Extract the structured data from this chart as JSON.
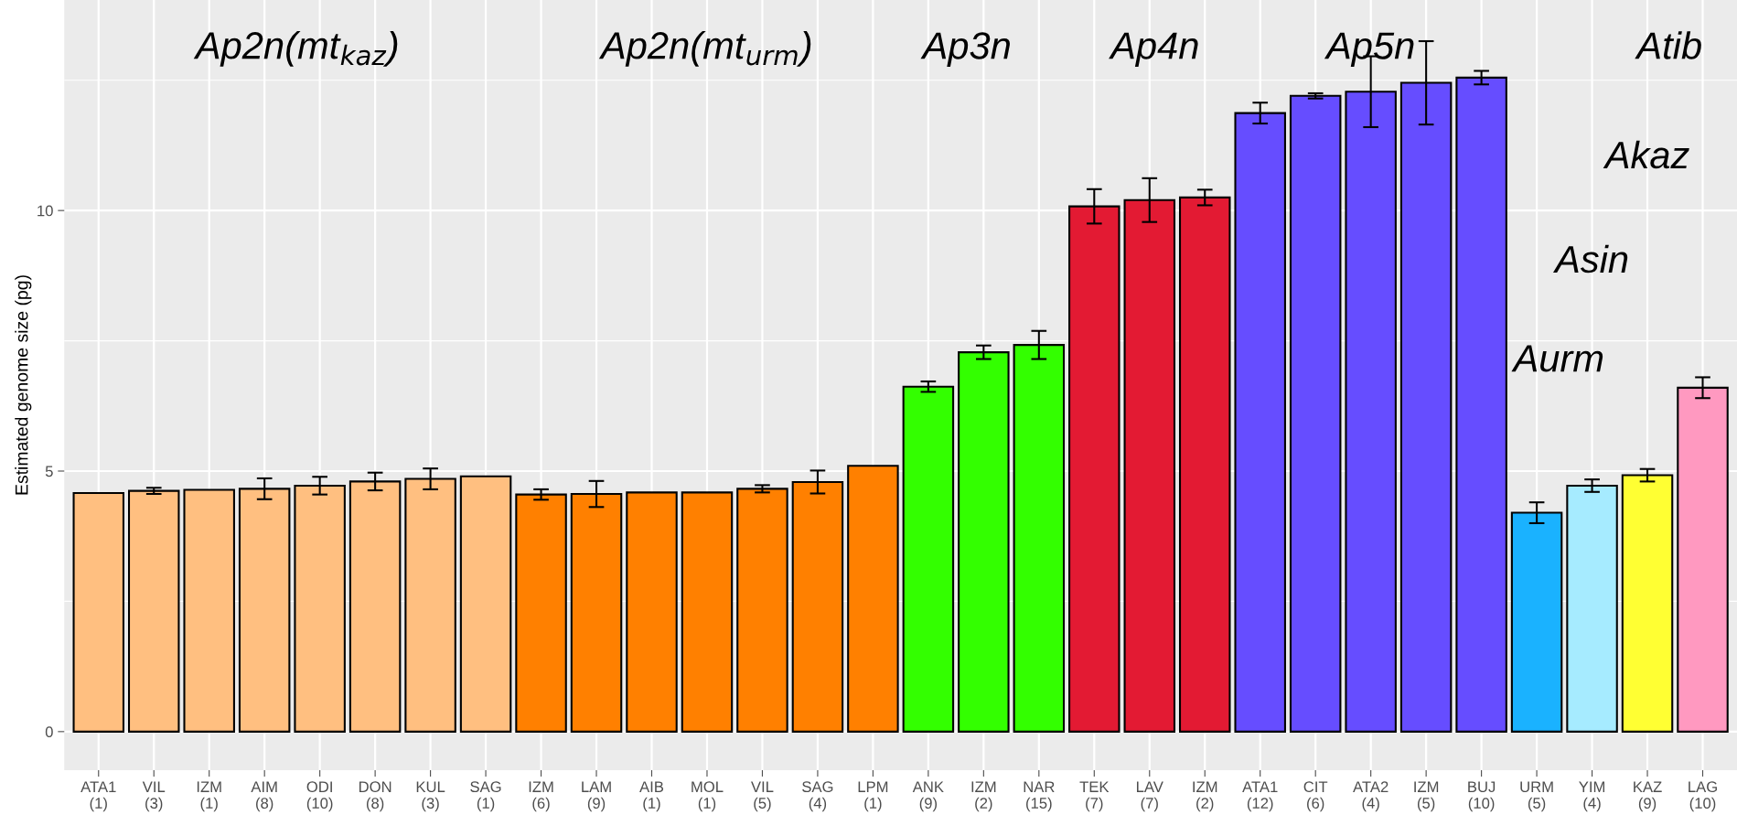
{
  "chart_data": {
    "type": "bar",
    "ylabel": "Estimated genome size (pg)",
    "categories": [
      "ATA1\n(1)",
      "VIL\n(3)",
      "IZM\n(1)",
      "AIM\n(8)",
      "ODI\n(10)",
      "DON\n(8)",
      "KUL\n(3)",
      "SAG\n(1)",
      "IZM\n(6)",
      "LAM\n(9)",
      "AIB\n(1)",
      "MOL\n(1)",
      "VIL\n(5)",
      "SAG\n(4)",
      "LPM\n(1)",
      "ANK\n(9)",
      "IZM\n(2)",
      "NAR\n(15)",
      "TEK\n(7)",
      "LAV\n(7)",
      "IZM\n(2)",
      "ATA1\n(12)",
      "CIT\n(6)",
      "ATA2\n(4)",
      "IZM\n(5)",
      "BUJ\n(10)",
      "URM\n(5)",
      "YIM\n(4)",
      "KAZ\n(9)",
      "LAG\n(10)"
    ],
    "values": [
      4.58,
      4.62,
      4.64,
      4.66,
      4.72,
      4.8,
      4.85,
      4.9,
      4.55,
      4.56,
      4.59,
      4.59,
      4.66,
      4.79,
      5.1,
      6.62,
      7.28,
      7.42,
      10.08,
      10.2,
      10.25,
      11.87,
      12.2,
      12.28,
      12.45,
      12.55,
      4.2,
      4.72,
      4.92,
      6.6
    ],
    "errors": [
      null,
      0.06,
      null,
      0.2,
      0.17,
      0.17,
      0.2,
      null,
      0.1,
      0.25,
      null,
      null,
      0.07,
      0.22,
      null,
      0.1,
      0.13,
      0.27,
      0.33,
      0.42,
      0.15,
      0.2,
      0.05,
      0.68,
      0.8,
      0.13,
      0.2,
      0.12,
      0.12,
      0.2
    ],
    "colors": [
      "#ffbf80",
      "#ffbf80",
      "#ffbf80",
      "#ffbf80",
      "#ffbf80",
      "#ffbf80",
      "#ffbf80",
      "#ffbf80",
      "#ff8000",
      "#ff8000",
      "#ff8000",
      "#ff8000",
      "#ff8000",
      "#ff8000",
      "#ff8000",
      "#33ff00",
      "#33ff00",
      "#33ff00",
      "#e31a33",
      "#e31a33",
      "#e31a33",
      "#664dff",
      "#664dff",
      "#664dff",
      "#664dff",
      "#664dff",
      "#1ab2ff",
      "#a6ebff",
      "#ffff33",
      "#ff99c0"
    ],
    "ylim": [
      -0.74,
      14.04
    ],
    "yticks": [
      0,
      5,
      10
    ],
    "grid": true,
    "annotations": [
      "Ap2n(mt$_{kaz}$)",
      "Ap2n(mt$_{urm}$)",
      "Ap3n",
      "Ap4n",
      "Ap5n",
      "Atib",
      "Akaz",
      "Asin",
      "Aurm"
    ]
  }
}
